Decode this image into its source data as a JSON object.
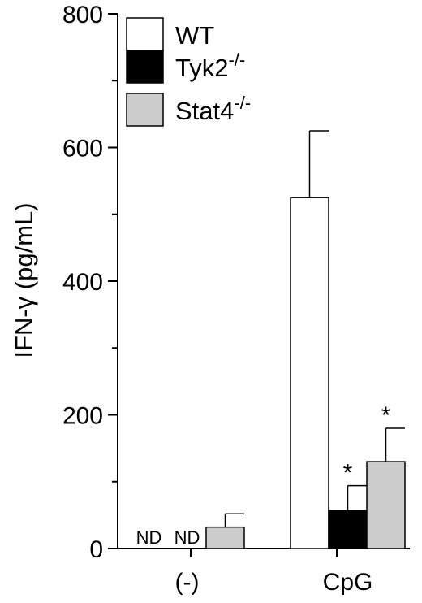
{
  "chart_data": {
    "type": "bar",
    "title": "",
    "ylabel": "IFN-γ (pg/mL)",
    "xlabel": "",
    "ylim": [
      0,
      800
    ],
    "yticks": [
      0,
      200,
      400,
      600,
      800
    ],
    "ytick_labels": [
      "0",
      "200",
      "400",
      "600",
      "800"
    ],
    "categories": [
      "(-)",
      "CpG"
    ],
    "series": [
      {
        "name": "WT",
        "superscript": "",
        "fill": "#ffffff",
        "values": [
          null,
          525
        ],
        "errors": [
          null,
          100
        ],
        "value_labels": [
          "ND",
          ""
        ],
        "significance": [
          "",
          ""
        ]
      },
      {
        "name": "Tyk2",
        "superscript": "-/-",
        "fill": "#000000",
        "values": [
          null,
          57
        ],
        "errors": [
          null,
          37
        ],
        "value_labels": [
          "ND",
          ""
        ],
        "significance": [
          "",
          "*"
        ]
      },
      {
        "name": "Stat4",
        "superscript": "-/-",
        "fill": "#cccccc",
        "values": [
          32,
          130
        ],
        "errors": [
          20,
          50
        ],
        "value_labels": [
          "",
          ""
        ],
        "significance": [
          "",
          "*"
        ]
      }
    ],
    "legend_position": "top-left",
    "grid": false
  }
}
